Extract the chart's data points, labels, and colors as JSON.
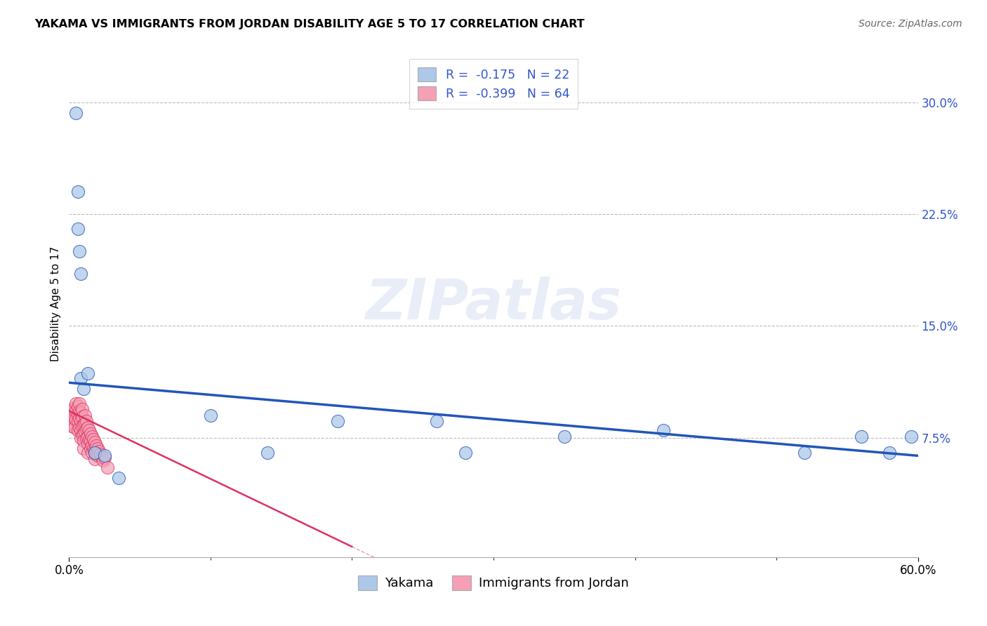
{
  "title": "YAKAMA VS IMMIGRANTS FROM JORDAN DISABILITY AGE 5 TO 17 CORRELATION CHART",
  "source": "Source: ZipAtlas.com",
  "ylabel": "Disability Age 5 to 17",
  "x_min": 0.0,
  "x_max": 0.6,
  "y_min": -0.005,
  "y_max": 0.335,
  "y_ticks": [
    0.075,
    0.15,
    0.225,
    0.3
  ],
  "y_tick_labels": [
    "7.5%",
    "15.0%",
    "22.5%",
    "30.0%"
  ],
  "x_ticks_major": [
    0.0,
    0.6
  ],
  "x_tick_labels": [
    "0.0%",
    "60.0%"
  ],
  "x_ticks_minor": [
    0.1,
    0.2,
    0.3,
    0.4,
    0.5
  ],
  "legend1_labels": [
    "R =  -0.175   N = 22",
    "R =  -0.399   N = 64"
  ],
  "legend2_labels": [
    "Yakama",
    "Immigrants from Jordan"
  ],
  "yakama_color": "#adc8e8",
  "jordan_color": "#f5a0b5",
  "trendline_yakama_color": "#2255bb",
  "trendline_jordan_color": "#e03060",
  "watermark_text": "ZIPatlas",
  "yakama_x": [
    0.005,
    0.006,
    0.006,
    0.007,
    0.008,
    0.008,
    0.01,
    0.013,
    0.018,
    0.025,
    0.035,
    0.1,
    0.14,
    0.19,
    0.26,
    0.28,
    0.35,
    0.42,
    0.52,
    0.56,
    0.58,
    0.595
  ],
  "yakama_y": [
    0.293,
    0.24,
    0.215,
    0.2,
    0.185,
    0.115,
    0.108,
    0.118,
    0.065,
    0.063,
    0.048,
    0.09,
    0.065,
    0.086,
    0.086,
    0.065,
    0.076,
    0.08,
    0.065,
    0.076,
    0.065,
    0.076
  ],
  "jordan_x": [
    0.001,
    0.002,
    0.002,
    0.003,
    0.003,
    0.004,
    0.004,
    0.004,
    0.005,
    0.005,
    0.005,
    0.006,
    0.006,
    0.006,
    0.006,
    0.007,
    0.007,
    0.007,
    0.007,
    0.008,
    0.008,
    0.008,
    0.008,
    0.009,
    0.009,
    0.009,
    0.009,
    0.01,
    0.01,
    0.01,
    0.01,
    0.011,
    0.011,
    0.011,
    0.012,
    0.012,
    0.012,
    0.013,
    0.013,
    0.013,
    0.013,
    0.014,
    0.014,
    0.015,
    0.015,
    0.015,
    0.016,
    0.016,
    0.016,
    0.017,
    0.017,
    0.018,
    0.018,
    0.018,
    0.019,
    0.019,
    0.02,
    0.02,
    0.021,
    0.022,
    0.023,
    0.024,
    0.025,
    0.027
  ],
  "jordan_y": [
    0.09,
    0.088,
    0.083,
    0.092,
    0.085,
    0.095,
    0.088,
    0.082,
    0.098,
    0.093,
    0.087,
    0.096,
    0.091,
    0.086,
    0.08,
    0.098,
    0.093,
    0.088,
    0.082,
    0.092,
    0.086,
    0.08,
    0.075,
    0.094,
    0.089,
    0.083,
    0.077,
    0.084,
    0.078,
    0.073,
    0.068,
    0.09,
    0.085,
    0.079,
    0.086,
    0.081,
    0.075,
    0.082,
    0.076,
    0.071,
    0.065,
    0.08,
    0.074,
    0.078,
    0.073,
    0.068,
    0.076,
    0.07,
    0.065,
    0.074,
    0.068,
    0.072,
    0.067,
    0.061,
    0.07,
    0.064,
    0.068,
    0.063,
    0.066,
    0.064,
    0.062,
    0.06,
    0.062,
    0.055
  ],
  "trendline_yakama_x0": 0.0,
  "trendline_yakama_x1": 0.6,
  "trendline_yakama_y0": 0.112,
  "trendline_yakama_y1": 0.063,
  "trendline_jordan_x0": 0.0,
  "trendline_jordan_x1": 0.2,
  "trendline_jordan_y0": 0.093,
  "trendline_jordan_y1": 0.002
}
